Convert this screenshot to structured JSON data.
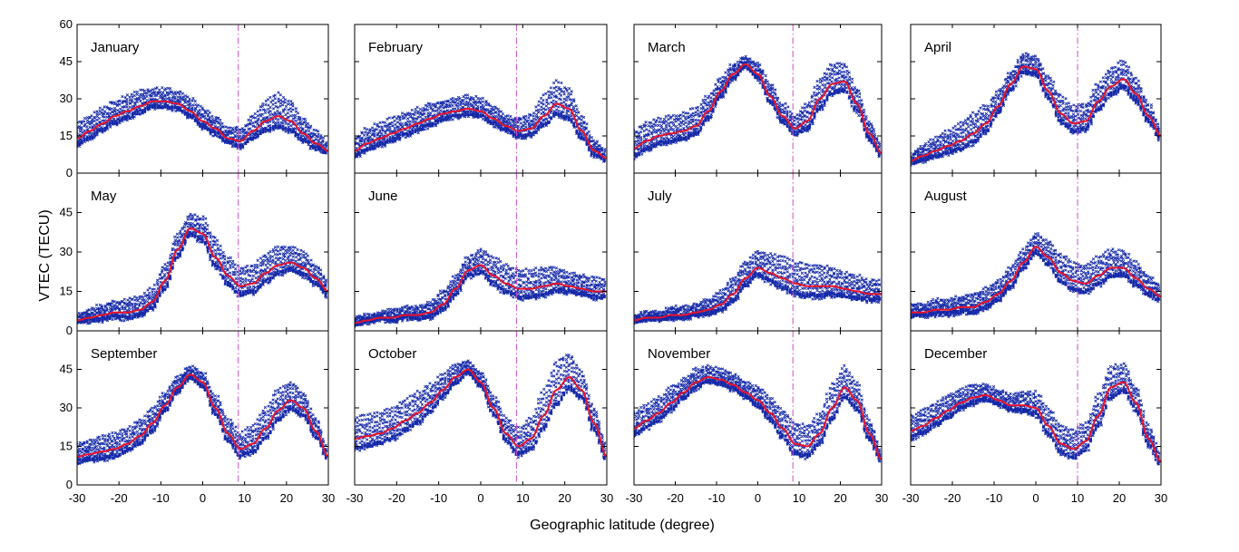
{
  "figure": {
    "xlabel": "Geographic latitude (degree)",
    "ylabel": "VTEC (TECU)"
  },
  "colors": {
    "mean_line": "#e8132b",
    "scatter": "#1428a8",
    "equator_line": "#d04cc8",
    "frame": "#000000"
  },
  "chart_data": {
    "type": "scatter",
    "panel_layout": "3 rows x 4 columns",
    "xlim": [
      -30,
      30
    ],
    "ylim": [
      0,
      60
    ],
    "xticks": [
      -30,
      -20,
      -10,
      0,
      10,
      20,
      30
    ],
    "yticks": [
      0,
      15,
      30,
      45,
      60
    ],
    "x_grid": [
      -30,
      -27,
      -24,
      -21,
      -18,
      -15,
      -12,
      -9,
      -6,
      -3,
      0,
      3,
      6,
      9,
      12,
      15,
      18,
      21,
      24,
      27,
      30
    ],
    "panels": [
      {
        "title": "January",
        "dip_equator": 8.5,
        "mean": [
          14,
          17,
          20,
          23,
          25,
          27,
          29,
          29,
          28,
          25,
          21,
          18,
          14,
          13,
          17,
          21,
          23,
          21,
          16,
          12,
          9
        ],
        "spread": [
          6,
          6,
          6,
          6,
          6,
          6,
          5,
          5,
          5,
          5,
          5,
          5,
          4,
          5,
          6,
          8,
          9,
          8,
          6,
          5,
          3
        ]
      },
      {
        "title": "February",
        "dip_equator": 8.5,
        "mean": [
          9,
          12,
          14,
          16,
          18,
          20,
          22,
          24,
          25,
          26,
          25,
          22,
          19,
          17,
          18,
          23,
          28,
          26,
          17,
          9,
          6
        ],
        "spread": [
          5,
          6,
          6,
          6,
          6,
          6,
          6,
          5,
          5,
          5,
          5,
          5,
          4,
          5,
          6,
          8,
          9,
          8,
          6,
          4,
          3
        ]
      },
      {
        "title": "March",
        "dip_equator": 8.5,
        "mean": [
          10,
          13,
          15,
          16,
          17,
          19,
          25,
          33,
          40,
          44,
          40,
          31,
          23,
          18,
          21,
          30,
          36,
          37,
          28,
          16,
          8
        ],
        "spread": [
          7,
          7,
          7,
          7,
          7,
          7,
          6,
          5,
          4,
          3,
          4,
          5,
          5,
          5,
          7,
          8,
          8,
          7,
          6,
          5,
          3
        ]
      },
      {
        "title": "April",
        "dip_equator": 10,
        "mean": [
          5,
          7,
          9,
          11,
          13,
          16,
          20,
          27,
          36,
          43,
          42,
          33,
          24,
          20,
          21,
          29,
          35,
          38,
          32,
          23,
          15
        ],
        "spread": [
          3,
          4,
          5,
          6,
          7,
          8,
          7,
          6,
          5,
          5,
          5,
          6,
          7,
          7,
          7,
          7,
          7,
          7,
          6,
          5,
          4
        ]
      },
      {
        "title": "May",
        "dip_equator": 8.5,
        "mean": [
          4,
          5,
          6,
          7,
          7,
          8,
          11,
          19,
          31,
          39,
          37,
          28,
          21,
          17,
          18,
          22,
          25,
          26,
          24,
          20,
          15
        ],
        "spread": [
          2,
          3,
          4,
          4,
          5,
          5,
          5,
          6,
          6,
          5,
          6,
          7,
          7,
          7,
          7,
          7,
          7,
          6,
          6,
          5,
          4
        ]
      },
      {
        "title": "June",
        "dip_equator": 8.5,
        "mean": [
          3,
          4,
          5,
          5,
          6,
          6,
          7,
          10,
          16,
          23,
          25,
          21,
          18,
          16,
          16,
          17,
          18,
          17,
          16,
          15,
          15
        ],
        "spread": [
          2,
          2,
          2,
          3,
          3,
          3,
          4,
          5,
          5,
          5,
          6,
          7,
          7,
          7,
          7,
          7,
          6,
          5,
          5,
          5,
          5
        ]
      },
      {
        "title": "July",
        "dip_equator": 8.5,
        "mean": [
          4,
          5,
          5,
          6,
          6,
          7,
          8,
          10,
          14,
          20,
          24,
          22,
          20,
          18,
          17,
          17,
          17,
          16,
          15,
          14,
          14
        ],
        "spread": [
          2,
          2,
          2,
          3,
          3,
          3,
          4,
          5,
          6,
          6,
          6,
          7,
          8,
          8,
          8,
          8,
          7,
          6,
          6,
          5,
          5
        ]
      },
      {
        "title": "August",
        "dip_equator": 10,
        "mean": [
          7,
          7,
          8,
          8,
          9,
          9,
          11,
          14,
          19,
          26,
          32,
          28,
          22,
          19,
          18,
          21,
          24,
          24,
          20,
          16,
          13
        ],
        "spread": [
          3,
          3,
          4,
          4,
          4,
          5,
          5,
          5,
          5,
          5,
          5,
          6,
          7,
          7,
          7,
          7,
          7,
          6,
          6,
          5,
          4
        ]
      },
      {
        "title": "September",
        "dip_equator": 8.5,
        "mean": [
          11,
          12,
          13,
          14,
          16,
          19,
          24,
          31,
          38,
          43,
          40,
          30,
          20,
          14,
          16,
          22,
          29,
          33,
          30,
          21,
          11
        ],
        "spread": [
          5,
          5,
          6,
          6,
          6,
          6,
          6,
          5,
          4,
          3,
          4,
          5,
          6,
          6,
          7,
          8,
          8,
          7,
          6,
          5,
          3
        ]
      },
      {
        "title": "October",
        "dip_equator": 8.5,
        "mean": [
          18,
          19,
          20,
          22,
          25,
          28,
          32,
          37,
          42,
          45,
          40,
          30,
          20,
          15,
          18,
          27,
          37,
          42,
          37,
          24,
          11
        ],
        "spread": [
          8,
          8,
          8,
          8,
          8,
          8,
          7,
          6,
          5,
          3,
          4,
          5,
          6,
          7,
          8,
          10,
          11,
          9,
          7,
          6,
          4
        ]
      },
      {
        "title": "November",
        "dip_equator": 8.5,
        "mean": [
          22,
          25,
          28,
          32,
          36,
          40,
          42,
          41,
          39,
          36,
          33,
          28,
          22,
          16,
          15,
          20,
          30,
          38,
          33,
          20,
          10
        ],
        "spread": [
          6,
          6,
          6,
          6,
          5,
          5,
          4,
          4,
          4,
          4,
          5,
          6,
          7,
          8,
          8,
          8,
          9,
          8,
          7,
          5,
          3
        ]
      },
      {
        "title": "December",
        "dip_equator": 10,
        "mean": [
          21,
          23,
          26,
          29,
          32,
          34,
          35,
          33,
          31,
          31,
          30,
          23,
          16,
          14,
          17,
          27,
          38,
          40,
          32,
          18,
          9
        ],
        "spread": [
          6,
          6,
          6,
          6,
          5,
          5,
          4,
          4,
          4,
          5,
          6,
          7,
          7,
          7,
          7,
          8,
          8,
          7,
          6,
          5,
          3
        ]
      }
    ]
  }
}
